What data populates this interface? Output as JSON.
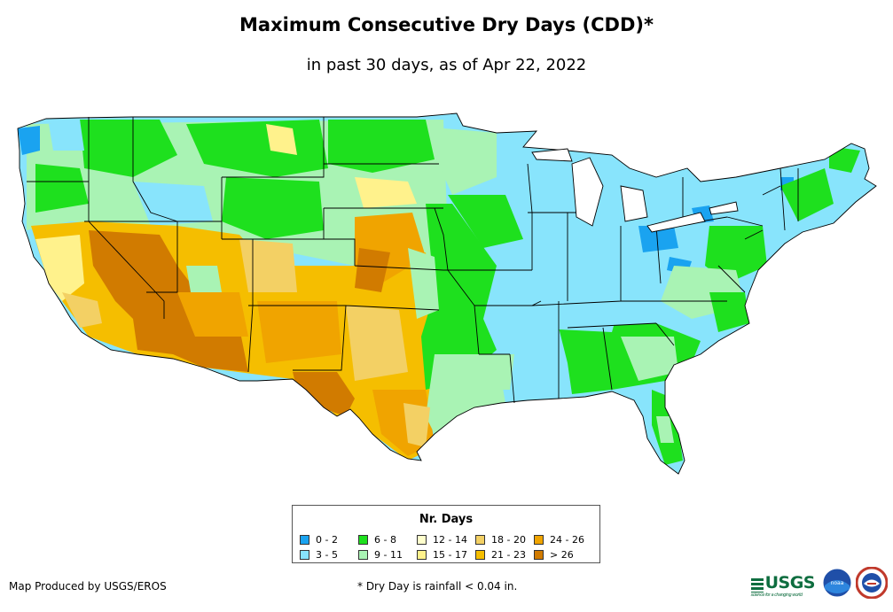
{
  "title": "Maximum Consecutive Dry Days (CDD)*",
  "subtitle": "in past 30 days, as of Apr 22, 2022",
  "legend": {
    "title": "Nr. Days",
    "items": [
      {
        "label": "0 - 2",
        "color": "#1aa3f0"
      },
      {
        "label": "6 - 8",
        "color": "#1ee01e"
      },
      {
        "label": "12 - 14",
        "color": "#ffffcc"
      },
      {
        "label": "18 - 20",
        "color": "#f3d064"
      },
      {
        "label": "24 - 26",
        "color": "#f0a400"
      },
      {
        "label": "3 - 5",
        "color": "#88e4fc"
      },
      {
        "label": "9 - 11",
        "color": "#a9f3b4"
      },
      {
        "label": "15 - 17",
        "color": "#fff28c"
      },
      {
        "label": "21 - 23",
        "color": "#f5be00"
      },
      {
        "label": "> 26",
        "color": "#d17b00"
      }
    ]
  },
  "footer": {
    "credit": "Map Produced by USGS/EROS",
    "note": "* Dry Day is rainfall < 0.04 in."
  },
  "logos": {
    "usgs": "USGS",
    "usgs_tagline": "science for a changing world",
    "noaa": "noaa"
  },
  "regions": [
    {
      "name": "west-coast-wet",
      "category": "3 - 5"
    },
    {
      "name": "pacific-northwest-coast",
      "category": "0 - 2"
    },
    {
      "name": "southwest-desert",
      "category": "> 26"
    },
    {
      "name": "southern-plains",
      "category": "21 - 23"
    },
    {
      "name": "midwest-east",
      "category": "3 - 5"
    },
    {
      "name": "northern-plains",
      "category": "6 - 8"
    },
    {
      "name": "southeast",
      "category": "6 - 8"
    }
  ]
}
